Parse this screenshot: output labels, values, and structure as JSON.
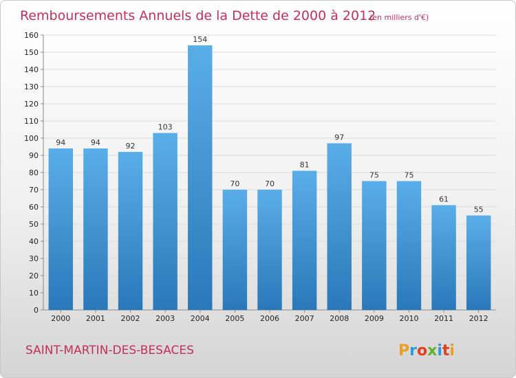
{
  "title": "Remboursements Annuels de la Dette de 2000 à 2012",
  "subtitle": "(en milliers d'€)",
  "commune": "SAINT-MARTIN-DES-BESACES",
  "logo": "Proxiti",
  "colors": {
    "bar_top": "#5aaee8",
    "bar_bottom": "#2a78b8",
    "title": "#c0305a",
    "logo": [
      "#e8a020",
      "#2a9bd8",
      "#e04020",
      "#60b030",
      "#2a9bd8",
      "#e04020",
      "#e8a020"
    ]
  },
  "chart_data": {
    "type": "bar",
    "title": "Remboursements Annuels de la Dette de 2000 à 2012",
    "subtitle": "(en milliers d'€)",
    "categories": [
      "2000",
      "2001",
      "2002",
      "2003",
      "2004",
      "2005",
      "2006",
      "2007",
      "2008",
      "2009",
      "2010",
      "2011",
      "2012"
    ],
    "values": [
      94,
      94,
      92,
      103,
      154,
      70,
      70,
      81,
      97,
      75,
      75,
      61,
      55
    ],
    "ylim": [
      0,
      160
    ],
    "yticks": [
      0,
      10,
      20,
      30,
      40,
      50,
      60,
      70,
      80,
      90,
      100,
      110,
      120,
      130,
      140,
      150,
      160
    ],
    "grid": true
  }
}
